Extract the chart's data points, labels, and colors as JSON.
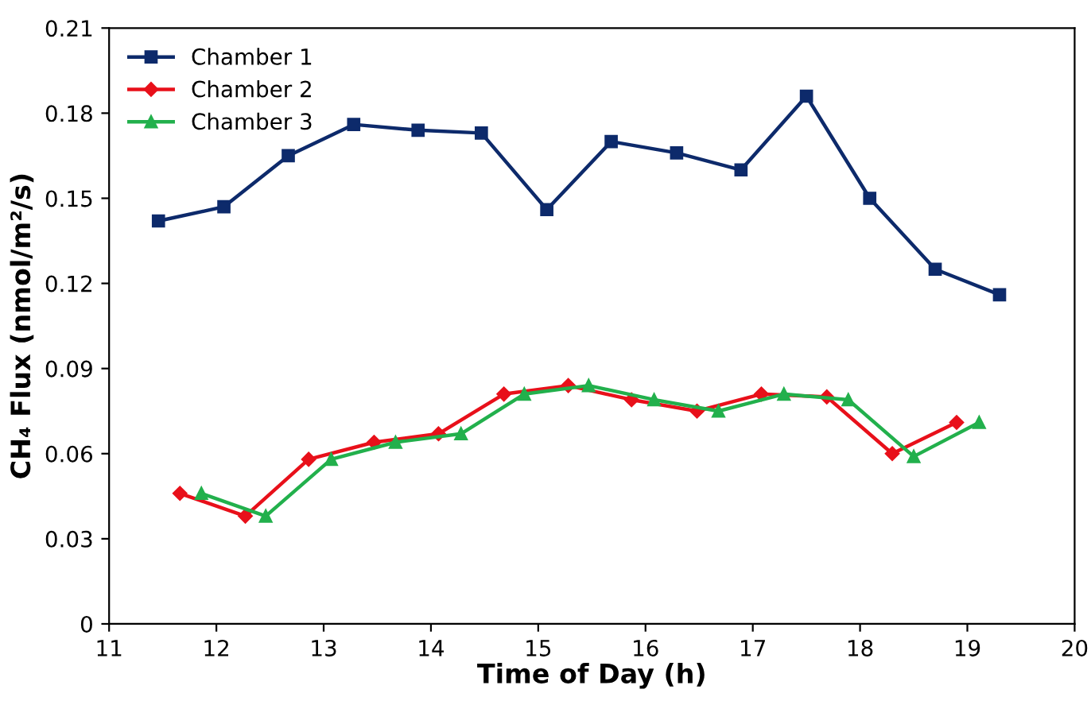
{
  "chart_data": {
    "type": "line",
    "xlabel": "Time of Day (h)",
    "ylabel": "CH₄ Flux (nmol/m²/s)",
    "xlim": [
      11,
      20
    ],
    "xticks": [
      11,
      12,
      13,
      14,
      15,
      16,
      17,
      18,
      19,
      20
    ],
    "ylim": [
      0,
      0.21
    ],
    "yticks": [
      0,
      0.03,
      0.06,
      0.09,
      0.12,
      0.15,
      0.18,
      0.21
    ],
    "grid": false,
    "legend": "top left",
    "series": [
      {
        "name": "Chamber 1",
        "color": "#0d2a6b",
        "marker": "square",
        "x": [
          11.46,
          12.07,
          12.67,
          13.28,
          13.88,
          14.47,
          15.08,
          15.68,
          16.29,
          16.89,
          17.5,
          18.09,
          18.7,
          19.3
        ],
        "values": [
          0.142,
          0.147,
          0.165,
          0.176,
          0.174,
          0.173,
          0.146,
          0.17,
          0.166,
          0.16,
          0.186,
          0.15,
          0.125,
          0.116
        ]
      },
      {
        "name": "Chamber 2",
        "color": "#e8101a",
        "marker": "diamond",
        "x": [
          11.66,
          12.27,
          12.86,
          13.47,
          14.07,
          14.68,
          15.28,
          15.87,
          16.48,
          17.08,
          17.69,
          18.3,
          18.9
        ],
        "values": [
          0.046,
          0.038,
          0.058,
          0.064,
          0.067,
          0.081,
          0.084,
          0.079,
          0.075,
          0.081,
          0.08,
          0.06,
          0.071
        ]
      },
      {
        "name": "Chamber 3",
        "color": "#22b04c",
        "marker": "triangle",
        "x": [
          11.86,
          12.46,
          13.07,
          13.67,
          14.28,
          14.87,
          15.47,
          16.08,
          16.68,
          17.29,
          17.89,
          18.5,
          19.11
        ],
        "values": [
          0.046,
          0.038,
          0.058,
          0.064,
          0.067,
          0.081,
          0.084,
          0.079,
          0.075,
          0.081,
          0.079,
          0.059,
          0.071
        ]
      }
    ]
  }
}
